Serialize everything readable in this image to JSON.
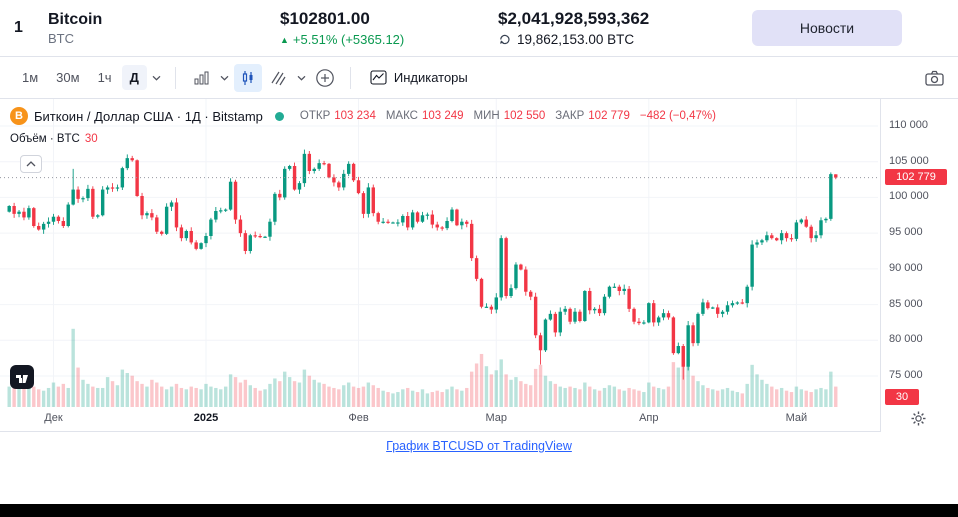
{
  "header": {
    "rank": "1",
    "name": "Bitcoin",
    "symbol": "BTC",
    "price": "$102801.00",
    "change": "+5.51% (+5365.12)",
    "change_direction": "up",
    "market_cap": "$2,041,928,593,362",
    "supply": "19,862,153.00 BTC",
    "news_button": "Новости"
  },
  "toolbar": {
    "intervals": [
      {
        "label": "1м",
        "active": false
      },
      {
        "label": "30м",
        "active": false
      },
      {
        "label": "1ч",
        "active": false
      },
      {
        "label": "Д",
        "active": true
      }
    ],
    "indicators_label": "Индикаторы"
  },
  "legend": {
    "symbol_line": "Биткоин / Доллар США · 1Д · Bitstamp",
    "ohlc": [
      {
        "label": "ОТКР",
        "value": "103 234"
      },
      {
        "label": "МАКС",
        "value": "103 249"
      },
      {
        "label": "МИН",
        "value": "102 550"
      },
      {
        "label": "ЗАКР",
        "value": "102 779"
      }
    ],
    "change": "−482 (−0,47%)",
    "volume_label": "Объём · BTC",
    "volume_value": "30"
  },
  "axis": {
    "y_ticks": [
      {
        "label": "110 000",
        "value": 110000
      },
      {
        "label": "105 000",
        "value": 105000
      },
      {
        "label": "100 000",
        "value": 100000
      },
      {
        "label": "95 000",
        "value": 95000
      },
      {
        "label": "90 000",
        "value": 90000
      },
      {
        "label": "85 000",
        "value": 85000
      },
      {
        "label": "80 000",
        "value": 80000
      },
      {
        "label": "75 000",
        "value": 75000
      }
    ],
    "x_ticks": [
      {
        "label": "Дек",
        "index": 9,
        "bold": false
      },
      {
        "label": "2025",
        "index": 40,
        "bold": true
      },
      {
        "label": "Фев",
        "index": 71,
        "bold": false
      },
      {
        "label": "Мар",
        "index": 99,
        "bold": false
      },
      {
        "label": "Апр",
        "index": 130,
        "bold": false
      },
      {
        "label": "Май",
        "index": 160,
        "bold": false
      }
    ],
    "price_label": "102 779",
    "volume_axis_label": "30"
  },
  "footer": {
    "attribution": "График BTCUSD от TradingView"
  },
  "colors": {
    "up": "#089981",
    "down": "#f23645",
    "accent": "#2962ff",
    "grid": "#f2f4f8",
    "price_line": "#9598a1",
    "badge": "#f23645"
  },
  "chart_data": {
    "type": "candlestick+volume",
    "title": "Биткоин / Доллар США, 1Д, Bitstamp",
    "pair": "BTCUSD",
    "interval": "1Д",
    "exchange": "Bitstamp",
    "y_axis": {
      "min": 75000,
      "max": 110000,
      "step": 5000
    },
    "price_line": 102779,
    "first_open": 98000,
    "last_candle": {
      "open": 103234,
      "high": 103249,
      "low": 102550,
      "close": 102779
    },
    "open_overrides": {
      "168": 103234
    },
    "high_overrides": {
      "13": 104000,
      "167": 103500,
      "168": 103249
    },
    "low_overrides": {
      "108": 76600,
      "137": 74500,
      "168": 102550
    },
    "closes": [
      98800,
      97700,
      98000,
      97200,
      98500,
      96000,
      95500,
      96300,
      96600,
      97300,
      96700,
      96000,
      99000,
      101100,
      99800,
      99900,
      101200,
      97300,
      97500,
      101100,
      101400,
      101300,
      101400,
      104100,
      105500,
      105200,
      100200,
      97500,
      97800,
      97200,
      95200,
      94900,
      98700,
      99300,
      95800,
      94300,
      95300,
      93700,
      92800,
      93600,
      94600,
      96900,
      98100,
      98200,
      98300,
      102200,
      96900,
      95000,
      92500,
      94700,
      94600,
      94500,
      94500,
      96600,
      100500,
      100000,
      104000,
      104400,
      101100,
      102000,
      106100,
      103700,
      104000,
      104800,
      104700,
      102800,
      102100,
      101400,
      103300,
      104700,
      102400,
      100600,
      97700,
      101400,
      97800,
      96600,
      96600,
      96500,
      96500,
      96500,
      97400,
      95800,
      97900,
      96600,
      97500,
      97600,
      96200,
      95800,
      95700,
      96700,
      98300,
      96100,
      96600,
      96300,
      91500,
      88600,
      84700,
      84700,
      84300,
      86000,
      94300,
      86200,
      87300,
      90600,
      89900,
      86800,
      86100,
      80700,
      78600,
      82900,
      83700,
      81100,
      84000,
      84400,
      82600,
      84000,
      82700,
      86900,
      84200,
      84400,
      83800,
      86100,
      87500,
      87500,
      86900,
      87200,
      84400,
      82600,
      82400,
      82500,
      85200,
      82500,
      83200,
      83800,
      83200,
      78200,
      79200,
      76300,
      82100,
      79600,
      83700,
      85300,
      84500,
      84600,
      83700,
      84000,
      84900,
      85200,
      85300,
      85200,
      87500,
      93400,
      93700,
      94000,
      94700,
      94300,
      94000,
      95000,
      94300,
      94200,
      96500,
      96900,
      95900,
      94300,
      94700,
      96800,
      97000,
      103261,
      102779
    ],
    "volumes": [
      30,
      42,
      28,
      35,
      35,
      30,
      26,
      24,
      28,
      36,
      30,
      34,
      28,
      115,
      58,
      40,
      34,
      30,
      28,
      28,
      44,
      38,
      32,
      55,
      50,
      46,
      38,
      34,
      30,
      40,
      36,
      30,
      26,
      30,
      34,
      28,
      26,
      30,
      28,
      26,
      34,
      30,
      28,
      26,
      30,
      48,
      44,
      36,
      40,
      32,
      28,
      24,
      26,
      34,
      42,
      38,
      52,
      44,
      38,
      36,
      55,
      46,
      40,
      36,
      34,
      30,
      28,
      26,
      32,
      36,
      30,
      28,
      30,
      36,
      32,
      28,
      24,
      22,
      20,
      22,
      26,
      28,
      24,
      22,
      26,
      20,
      22,
      24,
      22,
      26,
      30,
      26,
      24,
      28,
      52,
      64,
      78,
      60,
      48,
      54,
      70,
      48,
      40,
      44,
      38,
      34,
      32,
      56,
      62,
      46,
      38,
      34,
      30,
      28,
      30,
      28,
      26,
      36,
      30,
      26,
      24,
      28,
      32,
      30,
      26,
      24,
      28,
      26,
      24,
      22,
      36,
      30,
      28,
      26,
      30,
      66,
      58,
      88,
      70,
      46,
      38,
      32,
      28,
      26,
      24,
      26,
      28,
      24,
      22,
      20,
      34,
      62,
      48,
      40,
      34,
      30,
      26,
      28,
      24,
      22,
      30,
      26,
      24,
      22,
      26,
      28,
      26,
      52,
      30
    ]
  }
}
